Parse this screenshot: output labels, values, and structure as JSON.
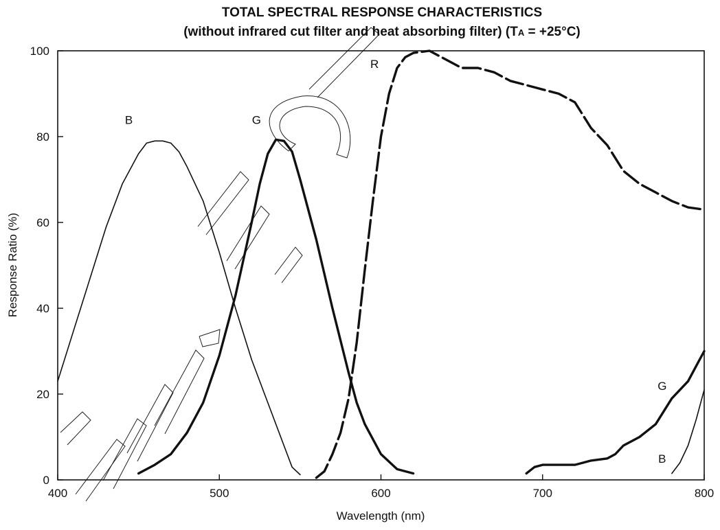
{
  "chart_data": {
    "type": "line",
    "title": "TOTAL SPECTRAL RESPONSE CHARACTERISTICS",
    "subtitle_parts": {
      "before": "(without infrared cut filter and heat absorbing filter) (T",
      "subscript": "A",
      "after": " = +25°C)"
    },
    "xlabel": "Wavelength (nm)",
    "ylabel": "Response Ratio (%)",
    "xlim": [
      400,
      800
    ],
    "ylim": [
      0,
      100
    ],
    "x_ticks": [
      400,
      500,
      600,
      700,
      800
    ],
    "y_ticks": [
      0,
      20,
      40,
      60,
      80,
      100
    ],
    "grid": false,
    "curve_labels": [
      {
        "text": "B",
        "x": 444,
        "y": 83
      },
      {
        "text": "G",
        "x": 523,
        "y": 83
      },
      {
        "text": "R",
        "x": 596,
        "y": 96
      },
      {
        "text": "G",
        "x": 774,
        "y": 21
      },
      {
        "text": "B",
        "x": 774,
        "y": 4
      }
    ],
    "series": [
      {
        "color": "#111111",
        "style": "solid",
        "weight": "thin",
        "points": [
          [
            400,
            23
          ],
          [
            410,
            35
          ],
          [
            420,
            47
          ],
          [
            430,
            59
          ],
          [
            440,
            69
          ],
          [
            450,
            76
          ],
          [
            455,
            78.5
          ],
          [
            460,
            79
          ],
          [
            465,
            79
          ],
          [
            470,
            78.5
          ],
          [
            475,
            76.5
          ],
          [
            480,
            73
          ],
          [
            490,
            65
          ],
          [
            500,
            53
          ],
          [
            510,
            40
          ],
          [
            520,
            28
          ],
          [
            530,
            18
          ],
          [
            540,
            8
          ],
          [
            545,
            3
          ],
          [
            550,
            1.2
          ]
        ]
      },
      {
        "color": "#111111",
        "style": "solid",
        "weight": "thick",
        "points": [
          [
            450,
            1.5
          ],
          [
            460,
            3.5
          ],
          [
            470,
            6
          ],
          [
            480,
            11
          ],
          [
            490,
            18
          ],
          [
            500,
            29
          ],
          [
            510,
            43
          ],
          [
            520,
            60
          ],
          [
            525,
            69
          ],
          [
            530,
            76
          ],
          [
            535,
            79.3
          ],
          [
            540,
            79
          ],
          [
            545,
            76.5
          ],
          [
            550,
            70
          ],
          [
            560,
            56
          ],
          [
            570,
            40
          ],
          [
            580,
            25
          ],
          [
            585,
            18
          ],
          [
            590,
            13
          ],
          [
            600,
            6
          ],
          [
            610,
            2.5
          ],
          [
            620,
            1.5
          ]
        ]
      },
      {
        "color": "#111111",
        "style": "dashed",
        "weight": "thick",
        "points": [
          [
            560,
            0.5
          ],
          [
            565,
            2
          ],
          [
            570,
            6
          ],
          [
            575,
            11
          ],
          [
            580,
            19
          ],
          [
            585,
            32
          ],
          [
            590,
            49
          ],
          [
            595,
            65
          ],
          [
            600,
            80
          ],
          [
            605,
            90
          ],
          [
            610,
            96
          ],
          [
            615,
            98.5
          ],
          [
            620,
            99.5
          ],
          [
            630,
            100
          ],
          [
            640,
            98
          ],
          [
            650,
            96
          ],
          [
            660,
            96
          ],
          [
            670,
            95
          ],
          [
            680,
            93
          ],
          [
            690,
            92
          ],
          [
            700,
            91
          ],
          [
            710,
            90
          ],
          [
            720,
            88
          ],
          [
            730,
            82
          ],
          [
            740,
            78
          ],
          [
            750,
            72
          ],
          [
            760,
            69
          ],
          [
            770,
            67
          ],
          [
            780,
            65
          ],
          [
            790,
            63.5
          ],
          [
            800,
            63
          ]
        ]
      },
      {
        "color": "#111111",
        "style": "solid",
        "weight": "thick",
        "points": [
          [
            690,
            1.5
          ],
          [
            695,
            3
          ],
          [
            700,
            3.5
          ],
          [
            710,
            3.5
          ],
          [
            720,
            3.5
          ],
          [
            725,
            4
          ],
          [
            730,
            4.5
          ],
          [
            740,
            5
          ],
          [
            745,
            6
          ],
          [
            750,
            8
          ],
          [
            760,
            10
          ],
          [
            770,
            13
          ],
          [
            780,
            19
          ],
          [
            790,
            23
          ],
          [
            795,
            26.5
          ],
          [
            800,
            30
          ]
        ]
      },
      {
        "color": "#111111",
        "style": "solid",
        "weight": "thin",
        "points": [
          [
            780,
            1.5
          ],
          [
            785,
            4
          ],
          [
            790,
            8
          ],
          [
            795,
            14
          ],
          [
            800,
            21
          ]
        ]
      }
    ]
  }
}
